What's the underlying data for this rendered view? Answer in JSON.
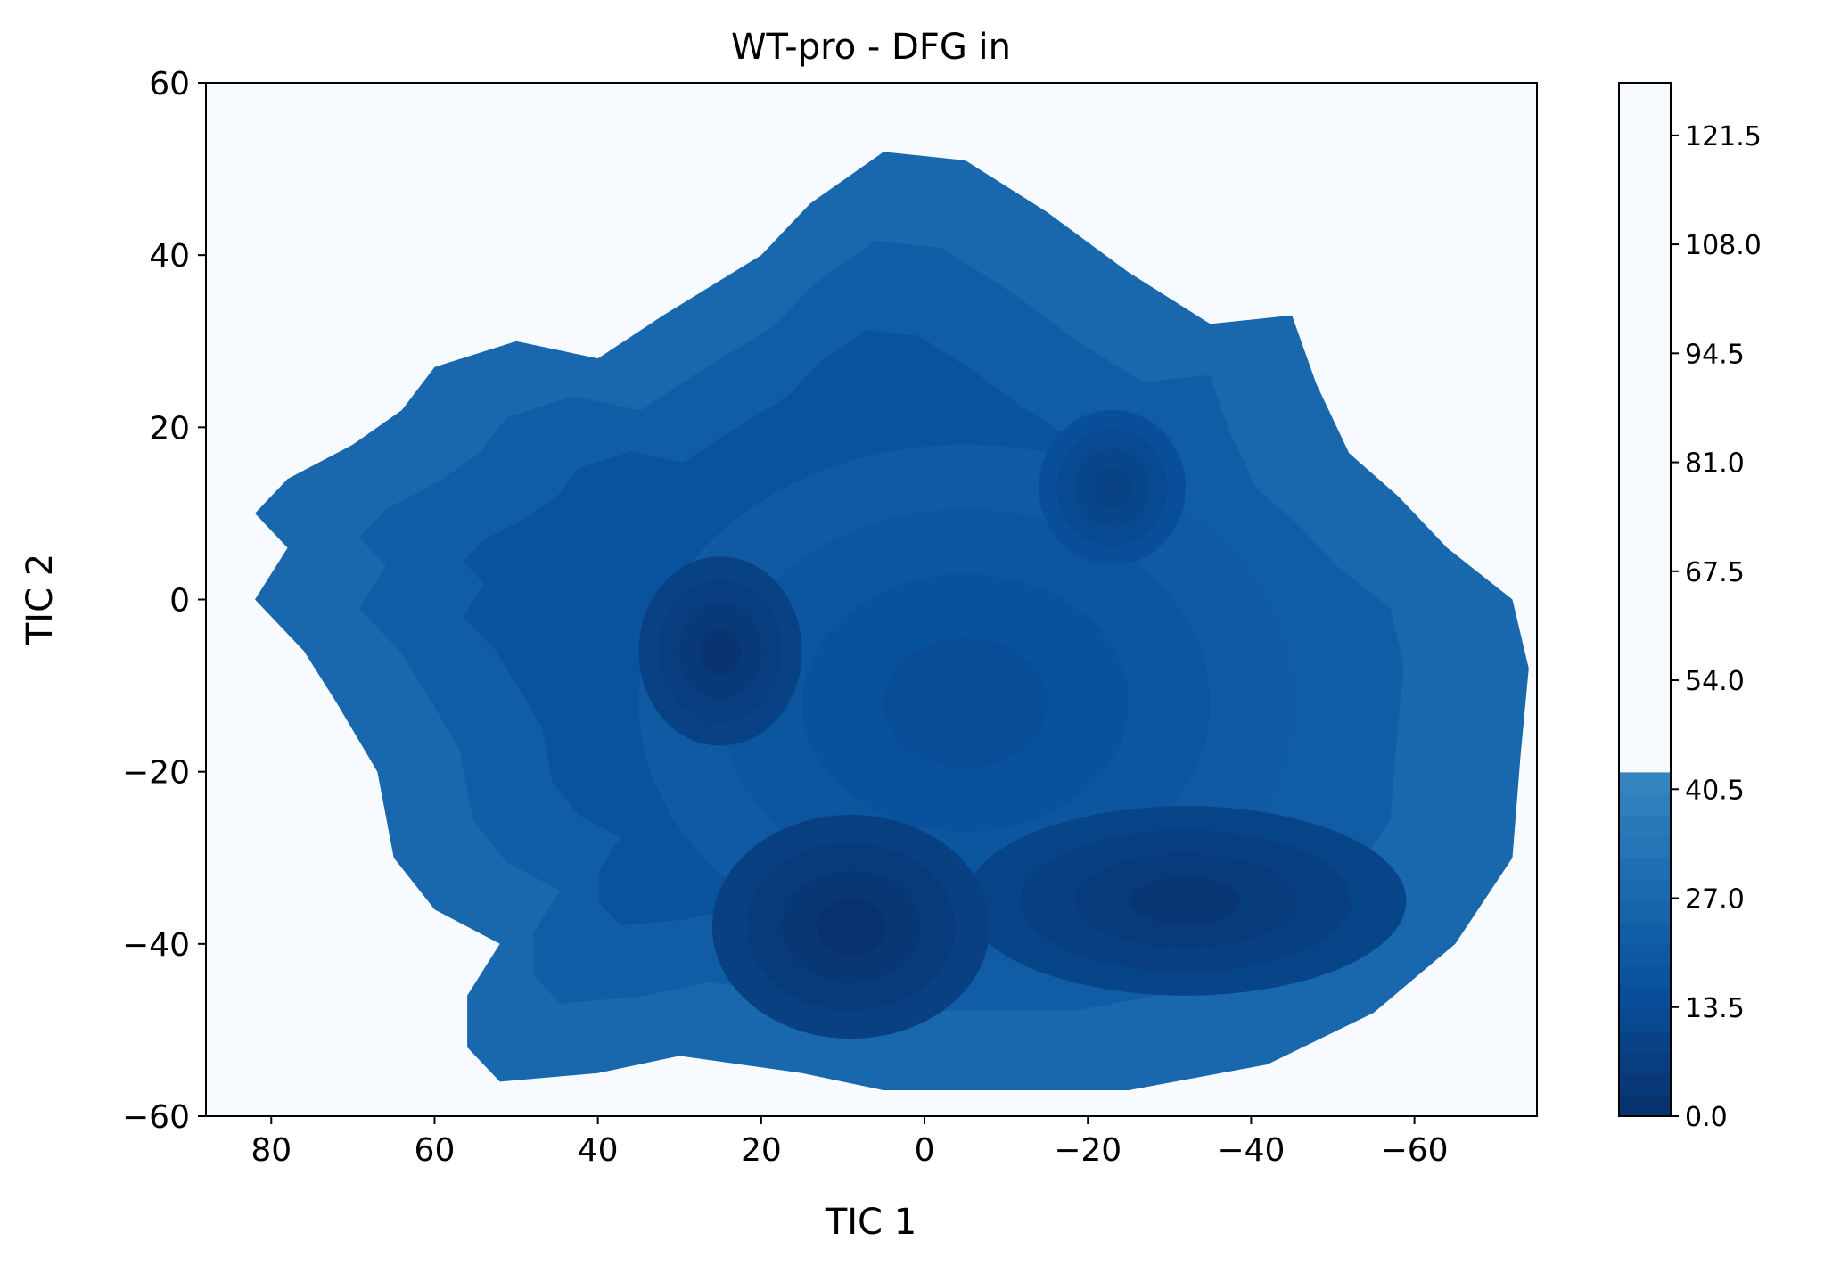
{
  "chart_data": {
    "type": "heatmap",
    "subtype": "filled-contour",
    "title": "WT-pro - DFG in",
    "xlabel": "TIC 1",
    "ylabel": "TIC 2",
    "xlim": [
      88,
      -75
    ],
    "ylim": [
      -60,
      60
    ],
    "x_inverted": true,
    "xticks": [
      80,
      60,
      40,
      20,
      0,
      -20,
      -40,
      -60
    ],
    "yticks": [
      -60,
      -40,
      -20,
      0,
      20,
      40,
      60
    ],
    "colormap": "Blues_r",
    "colorbar": {
      "min": 0.0,
      "max": 128,
      "ticks": [
        "0.0",
        "13.5",
        "27.0",
        "40.5",
        "54.0",
        "67.5",
        "81.0",
        "94.5",
        "108.0",
        "121.5"
      ],
      "tick_values": [
        0,
        13.5,
        27,
        40.5,
        54,
        67.5,
        81,
        94.5,
        108,
        121.5
      ],
      "color_low": "#08306b",
      "color_high": "#f7fbff"
    },
    "background_value": 128,
    "outline": [
      [
        60,
        27
      ],
      [
        50,
        30
      ],
      [
        40,
        28
      ],
      [
        32,
        33
      ],
      [
        20,
        40
      ],
      [
        14,
        46
      ],
      [
        5,
        52
      ],
      [
        -5,
        51
      ],
      [
        -15,
        45
      ],
      [
        -25,
        38
      ],
      [
        -35,
        32
      ],
      [
        -45,
        33
      ],
      [
        -48,
        25
      ],
      [
        -52,
        17
      ],
      [
        -58,
        12
      ],
      [
        -64,
        6
      ],
      [
        -72,
        0
      ],
      [
        -74,
        -8
      ],
      [
        -73,
        -18
      ],
      [
        -72,
        -30
      ],
      [
        -65,
        -40
      ],
      [
        -55,
        -48
      ],
      [
        -42,
        -54
      ],
      [
        -25,
        -57
      ],
      [
        -10,
        -57
      ],
      [
        5,
        -57
      ],
      [
        15,
        -55
      ],
      [
        30,
        -53
      ],
      [
        40,
        -55
      ],
      [
        52,
        -56
      ],
      [
        56,
        -52
      ],
      [
        56,
        -46
      ],
      [
        52,
        -40
      ],
      [
        60,
        -36
      ],
      [
        65,
        -30
      ],
      [
        67,
        -20
      ],
      [
        72,
        -12
      ],
      [
        76,
        -6
      ],
      [
        82,
        0
      ],
      [
        78,
        6
      ],
      [
        82,
        10
      ],
      [
        78,
        14
      ],
      [
        70,
        18
      ],
      [
        64,
        22
      ]
    ],
    "basins": [
      {
        "x": 25,
        "y": -6,
        "rx": 10,
        "ry": 11,
        "depth": 2
      },
      {
        "x": 9,
        "y": -38,
        "rx": 17,
        "ry": 13,
        "depth": 1
      },
      {
        "x": -32,
        "y": -35,
        "rx": 27,
        "ry": 11,
        "depth": 3
      },
      {
        "x": -23,
        "y": 13,
        "rx": 9,
        "ry": 9,
        "depth": 8
      },
      {
        "x": -5,
        "y": -12,
        "rx": 40,
        "ry": 30,
        "depth": 14
      }
    ]
  }
}
